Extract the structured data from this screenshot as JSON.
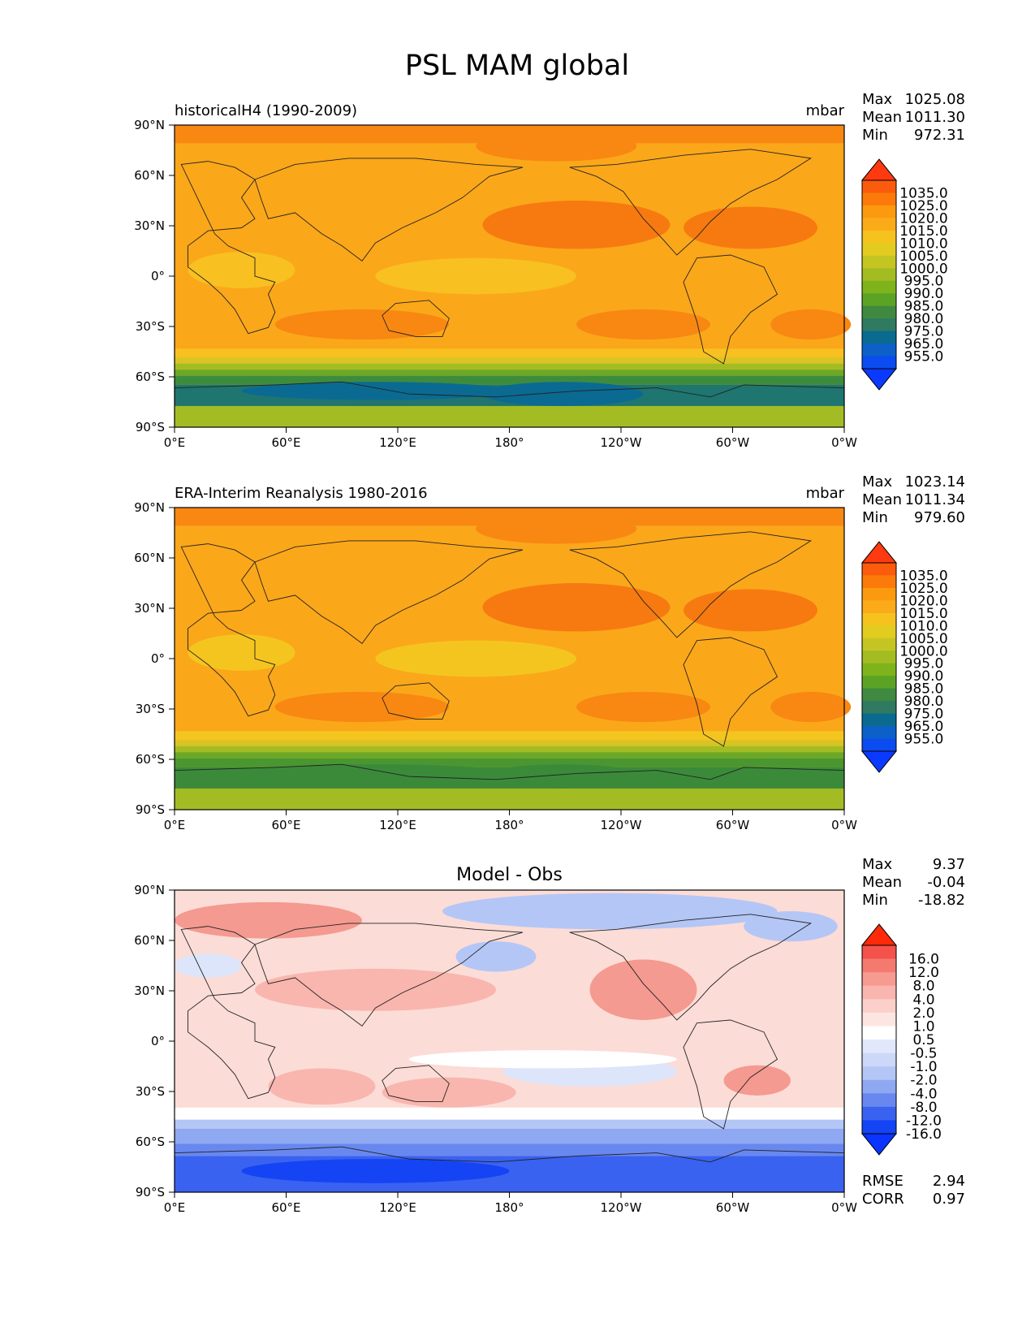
{
  "title": "PSL MAM global",
  "panels": [
    {
      "id": "test",
      "left_label": "historicalH4 (1990-2009)",
      "center_label": "",
      "units": "mbar",
      "stats": [
        {
          "label": "Max",
          "value": "1025.08"
        },
        {
          "label": "Mean",
          "value": "1011.30"
        },
        {
          "label": "Min",
          "value": "972.31"
        }
      ],
      "colorbar_labels": [
        "1035.0",
        "1025.0",
        "1020.0",
        "1015.0",
        "1010.0",
        "1005.0",
        "1000.0",
        "995.0",
        "990.0",
        "985.0",
        "980.0",
        "975.0",
        "965.0",
        "955.0"
      ],
      "colorbar_colors": [
        "#ff3a10",
        "#fb5b0c",
        "#fb7a0a",
        "#fb9a0e",
        "#fbaa18",
        "#f5c21e",
        "#e2cc20",
        "#c4c523",
        "#a3bc22",
        "#7fb31c",
        "#5ba324",
        "#3f8a40",
        "#2f7a60",
        "#0a6a90",
        "#0d60c8",
        "#0a4cf0",
        "#0a3aff"
      ],
      "map_colors": {
        "base": "#fba71a",
        "high": "#f88812",
        "higher": "#f77a10",
        "mid": "#f8c020",
        "low1": "#d8c424",
        "low2": "#a4bc24",
        "low3": "#6aa828",
        "low4": "#3d8c3e",
        "low5": "#1f7570",
        "low6": "#0b6a92"
      }
    },
    {
      "id": "reference",
      "left_label": "ERA-Interim Reanalysis 1980-2016",
      "center_label": "",
      "units": "mbar",
      "stats": [
        {
          "label": "Max",
          "value": "1023.14"
        },
        {
          "label": "Mean",
          "value": "1011.34"
        },
        {
          "label": "Min",
          "value": "979.60"
        }
      ],
      "colorbar_labels": [
        "1035.0",
        "1025.0",
        "1020.0",
        "1015.0",
        "1010.0",
        "1005.0",
        "1000.0",
        "995.0",
        "990.0",
        "985.0",
        "980.0",
        "975.0",
        "965.0",
        "955.0"
      ],
      "colorbar_colors": [
        "#ff3a10",
        "#fb5b0c",
        "#fb7a0a",
        "#fb9a0e",
        "#fbaa18",
        "#f5c21e",
        "#e2cc20",
        "#c4c523",
        "#a3bc22",
        "#7fb31c",
        "#5ba324",
        "#3f8a40",
        "#2f7a60",
        "#0a6a90",
        "#0d60c8",
        "#0a4cf0",
        "#0a3aff"
      ],
      "map_colors": {
        "base": "#fba71a",
        "high": "#f88812",
        "higher": "#f77a10",
        "mid": "#f5c51f",
        "low1": "#d8c424",
        "low2": "#a4bc24",
        "low3": "#6aa828",
        "low4": "#4a9630",
        "low5": "#3a8a3a",
        "low6": "#3a8a3a"
      }
    },
    {
      "id": "difference",
      "left_label": "",
      "center_label": "Model - Obs",
      "units": "",
      "stats": [
        {
          "label": "Max",
          "value": "9.37"
        },
        {
          "label": "Mean",
          "value": "-0.04"
        },
        {
          "label": "Min",
          "value": "-18.82"
        }
      ],
      "extra_stats": [
        {
          "label": "RMSE",
          "value": "2.94"
        },
        {
          "label": "CORR",
          "value": "0.97"
        }
      ],
      "colorbar_labels": [
        "16.0",
        "12.0",
        "8.0",
        "4.0",
        "2.0",
        "1.0",
        "0.5",
        "-0.5",
        "-1.0",
        "-2.0",
        "-4.0",
        "-8.0",
        "-12.0",
        "-16.0"
      ],
      "colorbar_colors": [
        "#ff2a0a",
        "#f4524a",
        "#f47a70",
        "#f79a90",
        "#f9b6ae",
        "#fbd0ca",
        "#fde6e2",
        "#ffffff",
        "#e2e8fb",
        "#cdd8f8",
        "#b4c6f6",
        "#8ea8f2",
        "#6888f0",
        "#3a62f0",
        "#1444f4",
        "#0a34ff"
      ],
      "map_colors": {
        "base": "#fcdcd6",
        "white": "#ffffff",
        "pos1": "#f9b6ae",
        "pos2": "#f49a90",
        "pos3": "#ef7a70",
        "neg1": "#dde5fb",
        "neg2": "#b4c6f6",
        "neg3": "#8ea8f2",
        "neg4": "#6888f0",
        "neg5": "#3a62f0",
        "neg6": "#1444f4"
      }
    }
  ],
  "axes": {
    "x_ticks": [
      "0°E",
      "60°E",
      "120°E",
      "180°",
      "120°W",
      "60°W",
      "0°W"
    ],
    "y_ticks": [
      "90°N",
      "60°N",
      "30°N",
      "0°",
      "30°S",
      "60°S",
      "90°S"
    ]
  }
}
